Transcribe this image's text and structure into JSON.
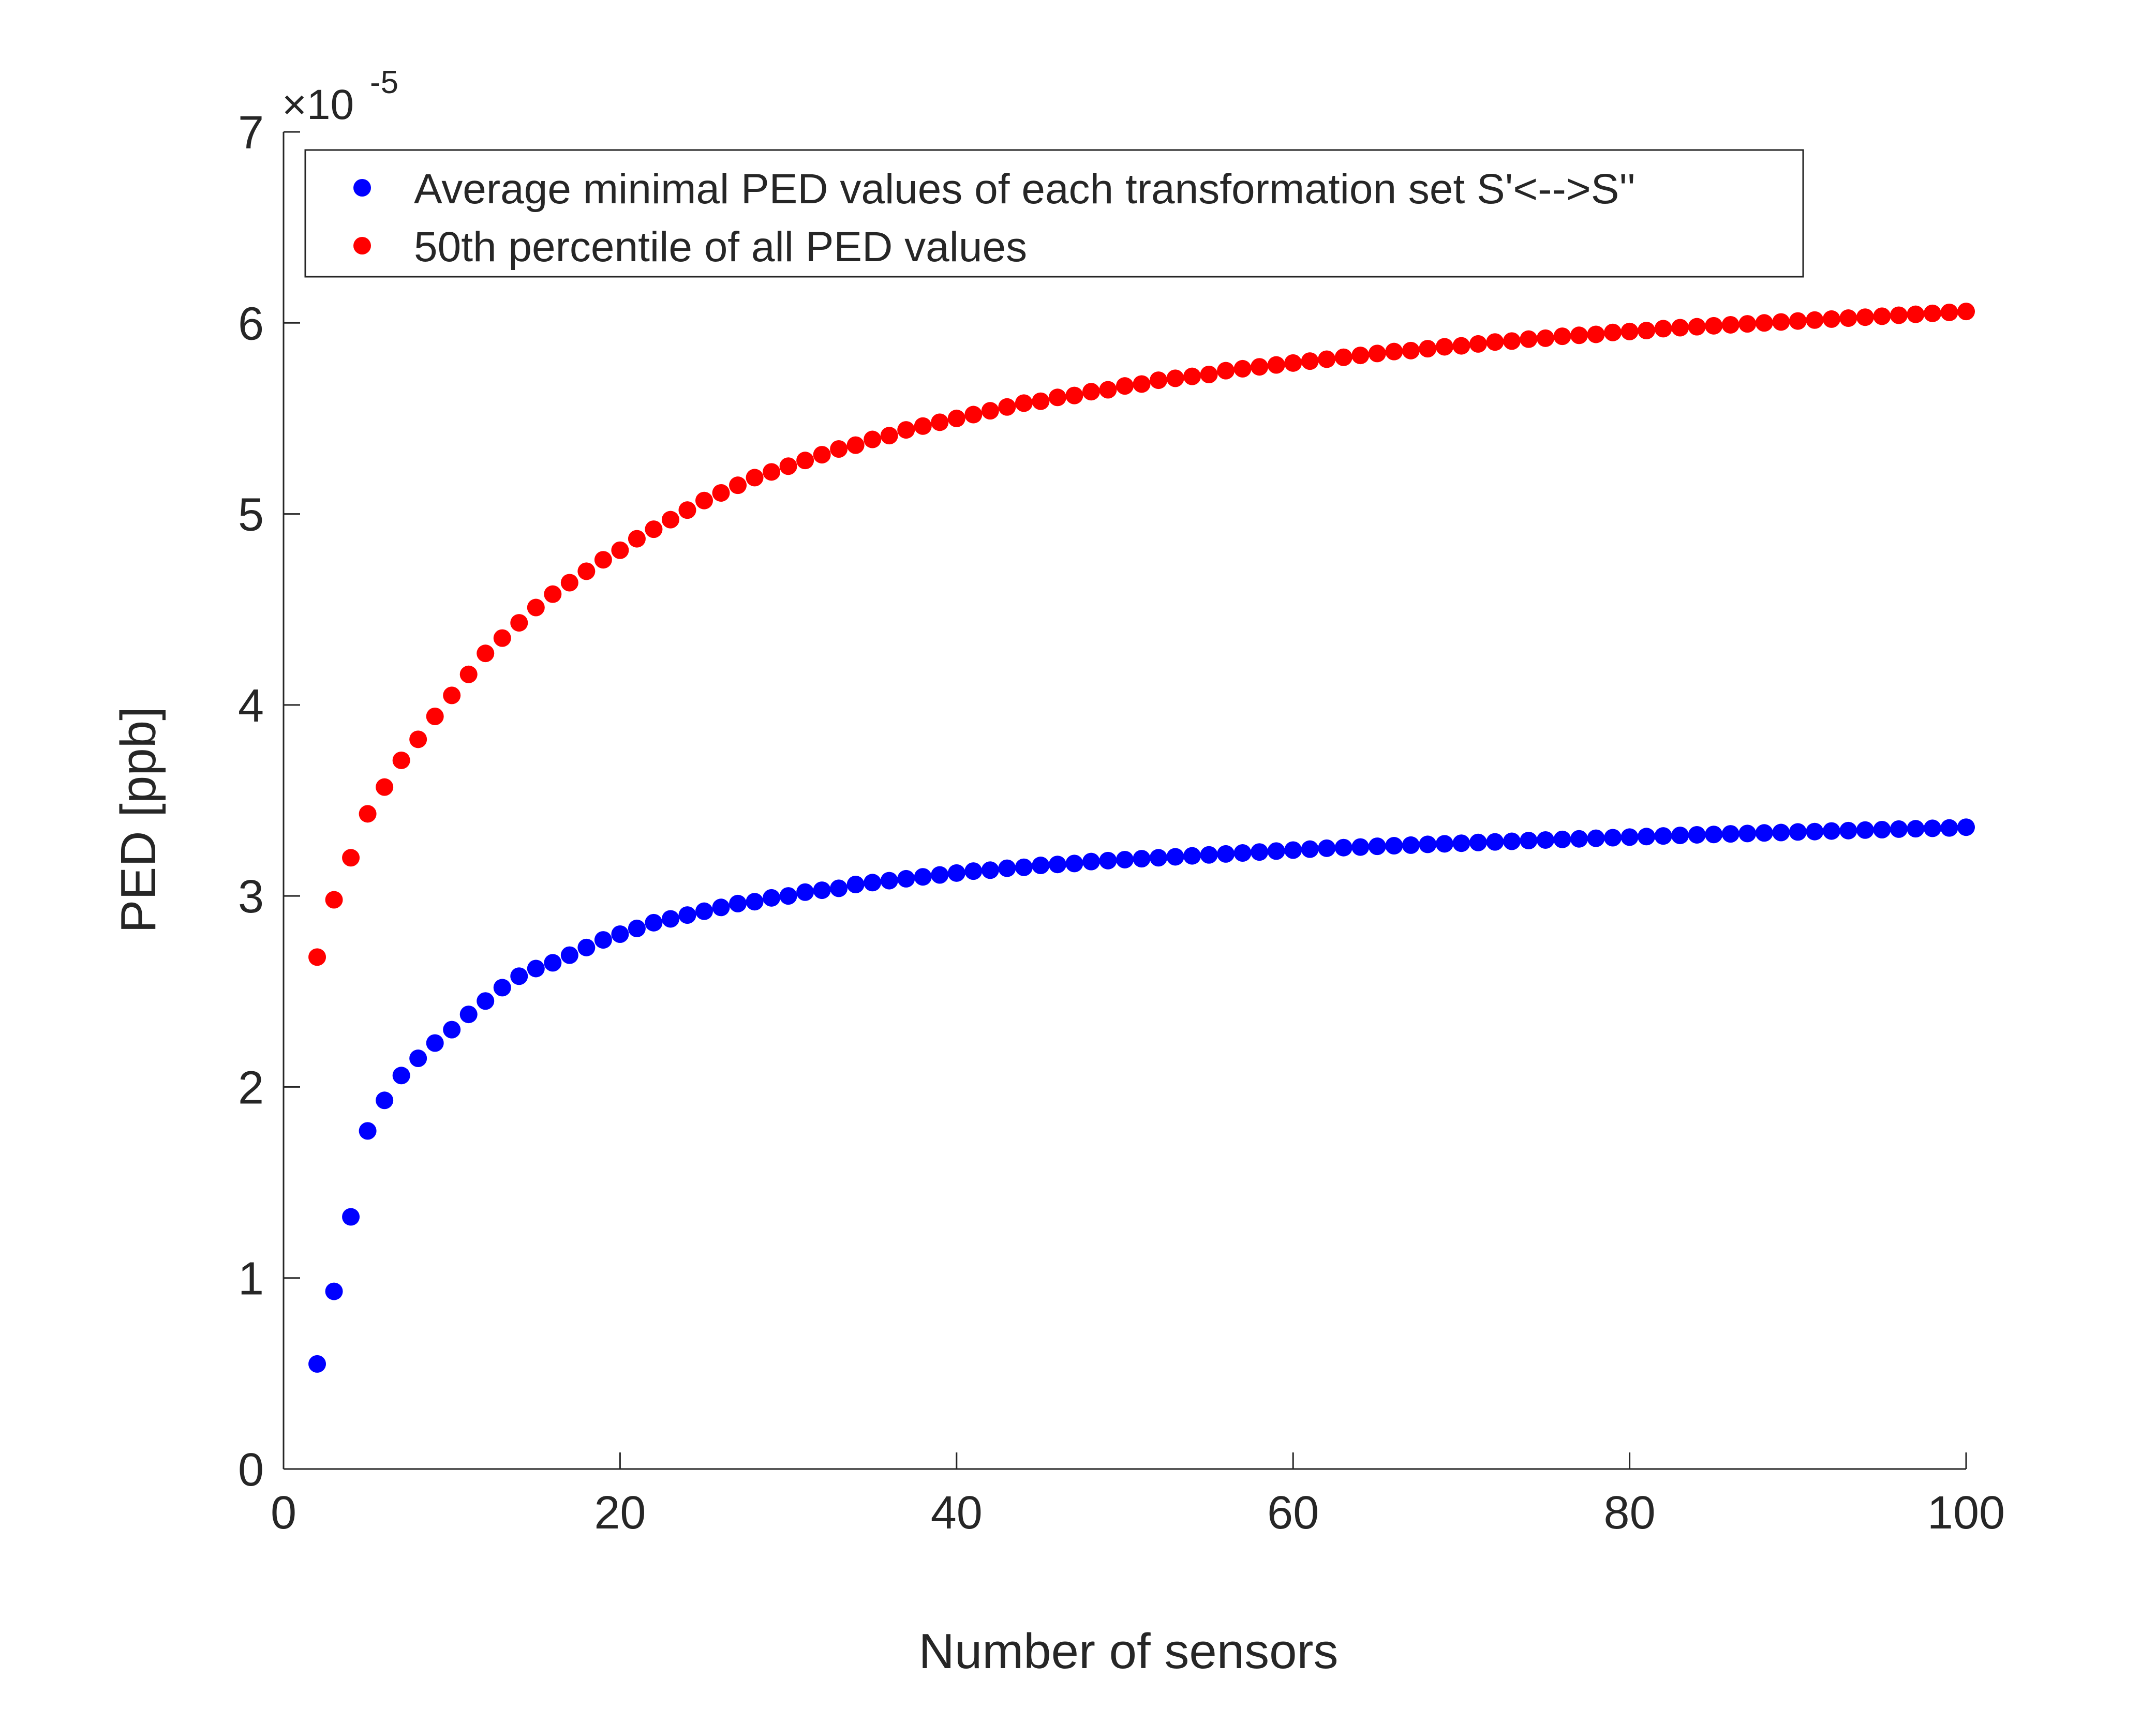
{
  "chart_data": {
    "type": "scatter",
    "xlabel": "Number of sensors",
    "ylabel": "PED [ppb]",
    "exponent_base": "×10",
    "exponent_power": "-5",
    "xlim": [
      0,
      100
    ],
    "ylim": [
      0,
      7
    ],
    "xticks": [
      0,
      20,
      40,
      60,
      80,
      100
    ],
    "yticks": [
      0,
      1,
      2,
      3,
      4,
      5,
      6,
      7
    ],
    "grid": false,
    "legend_position": "top-left",
    "series": [
      {
        "name": "Average minimal PED values of each transformation set S'<-->S''",
        "color": "#0000ff",
        "x": [
          2,
          3,
          4,
          5,
          6,
          7,
          8,
          9,
          10,
          11,
          12,
          13,
          14,
          15,
          16,
          17,
          18,
          19,
          20,
          21,
          22,
          23,
          24,
          25,
          26,
          27,
          28,
          29,
          30,
          31,
          32,
          33,
          34,
          35,
          36,
          37,
          38,
          39,
          40,
          41,
          42,
          43,
          44,
          45,
          46,
          47,
          48,
          49,
          50,
          51,
          52,
          53,
          54,
          55,
          56,
          57,
          58,
          59,
          60,
          61,
          62,
          63,
          64,
          65,
          66,
          67,
          68,
          69,
          70,
          71,
          72,
          73,
          74,
          75,
          76,
          77,
          78,
          79,
          80,
          81,
          82,
          83,
          84,
          85,
          86,
          87,
          88,
          89,
          90,
          91,
          92,
          93,
          94,
          95,
          96,
          97,
          98,
          99,
          100
        ],
        "y": [
          0.55,
          0.93,
          1.32,
          1.77,
          1.93,
          2.06,
          2.15,
          2.23,
          2.3,
          2.38,
          2.45,
          2.52,
          2.58,
          2.62,
          2.65,
          2.69,
          2.73,
          2.77,
          2.8,
          2.83,
          2.86,
          2.88,
          2.9,
          2.92,
          2.94,
          2.96,
          2.97,
          2.99,
          3.0,
          3.02,
          3.03,
          3.04,
          3.06,
          3.07,
          3.08,
          3.09,
          3.1,
          3.11,
          3.12,
          3.13,
          3.135,
          3.145,
          3.15,
          3.16,
          3.165,
          3.17,
          3.18,
          3.185,
          3.19,
          3.195,
          3.2,
          3.205,
          3.21,
          3.215,
          3.22,
          3.225,
          3.23,
          3.235,
          3.24,
          3.245,
          3.25,
          3.253,
          3.256,
          3.26,
          3.263,
          3.266,
          3.27,
          3.273,
          3.276,
          3.28,
          3.283,
          3.286,
          3.29,
          3.293,
          3.296,
          3.299,
          3.302,
          3.305,
          3.308,
          3.311,
          3.314,
          3.317,
          3.32,
          3.322,
          3.325,
          3.327,
          3.33,
          3.332,
          3.335,
          3.337,
          3.34,
          3.342,
          3.345,
          3.347,
          3.35,
          3.352,
          3.354,
          3.356,
          3.36
        ]
      },
      {
        "name": "50th percentile of all PED values",
        "color": "#ff0000",
        "x": [
          2,
          3,
          4,
          5,
          6,
          7,
          8,
          9,
          10,
          11,
          12,
          13,
          14,
          15,
          16,
          17,
          18,
          19,
          20,
          21,
          22,
          23,
          24,
          25,
          26,
          27,
          28,
          29,
          30,
          31,
          32,
          33,
          34,
          35,
          36,
          37,
          38,
          39,
          40,
          41,
          42,
          43,
          44,
          45,
          46,
          47,
          48,
          49,
          50,
          51,
          52,
          53,
          54,
          55,
          56,
          57,
          58,
          59,
          60,
          61,
          62,
          63,
          64,
          65,
          66,
          67,
          68,
          69,
          70,
          71,
          72,
          73,
          74,
          75,
          76,
          77,
          78,
          79,
          80,
          81,
          82,
          83,
          84,
          85,
          86,
          87,
          88,
          89,
          90,
          91,
          92,
          93,
          94,
          95,
          96,
          97,
          98,
          99,
          100
        ],
        "y": [
          2.68,
          2.98,
          3.2,
          3.43,
          3.57,
          3.71,
          3.82,
          3.94,
          4.05,
          4.16,
          4.27,
          4.35,
          4.43,
          4.51,
          4.58,
          4.64,
          4.7,
          4.76,
          4.81,
          4.87,
          4.92,
          4.97,
          5.02,
          5.07,
          5.11,
          5.15,
          5.19,
          5.22,
          5.25,
          5.28,
          5.31,
          5.34,
          5.36,
          5.39,
          5.41,
          5.44,
          5.46,
          5.48,
          5.5,
          5.52,
          5.54,
          5.56,
          5.58,
          5.59,
          5.61,
          5.62,
          5.64,
          5.65,
          5.67,
          5.68,
          5.7,
          5.71,
          5.72,
          5.73,
          5.75,
          5.76,
          5.77,
          5.78,
          5.79,
          5.8,
          5.81,
          5.82,
          5.83,
          5.84,
          5.85,
          5.855,
          5.865,
          5.875,
          5.88,
          5.89,
          5.9,
          5.905,
          5.915,
          5.92,
          5.93,
          5.935,
          5.94,
          5.95,
          5.955,
          5.96,
          5.97,
          5.975,
          5.98,
          5.985,
          5.99,
          5.995,
          6.0,
          6.005,
          6.01,
          6.015,
          6.02,
          6.025,
          6.03,
          6.035,
          6.04,
          6.045,
          6.05,
          6.055,
          6.06
        ]
      }
    ]
  }
}
